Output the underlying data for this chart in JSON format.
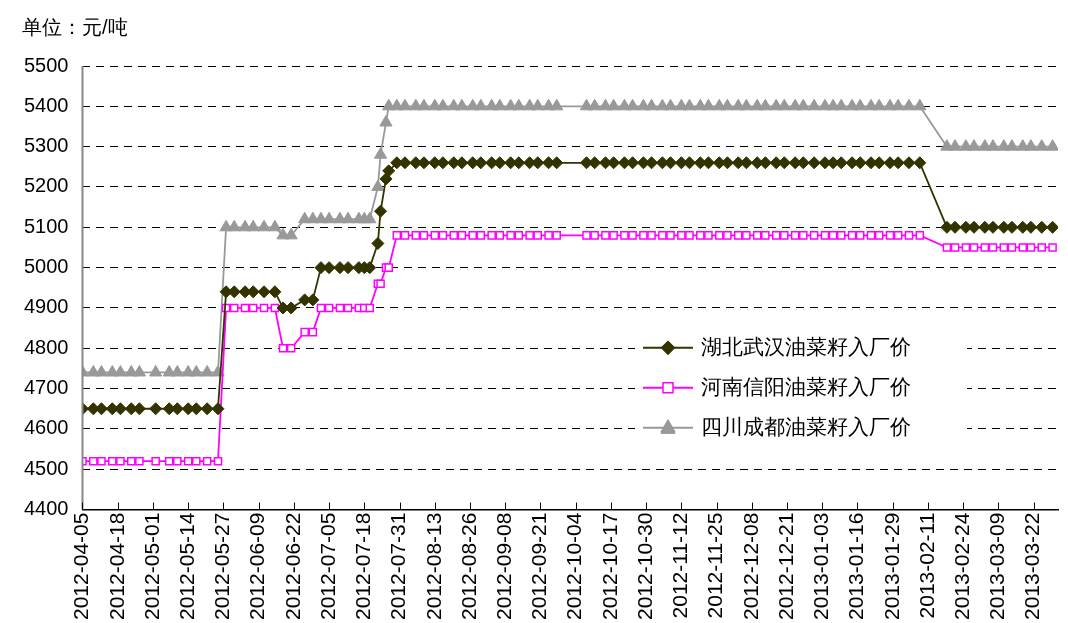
{
  "chart_data": {
    "type": "line",
    "ylabel": "单位：元/吨",
    "x": [
      "2012-04-05",
      "2012-04-09",
      "2012-04-12",
      "2012-04-16",
      "2012-04-19",
      "2012-04-23",
      "2012-04-26",
      "2012-05-02",
      "2012-05-07",
      "2012-05-10",
      "2012-05-14",
      "2012-05-17",
      "2012-05-21",
      "2012-05-25",
      "2012-05-28",
      "2012-05-31",
      "2012-06-04",
      "2012-06-07",
      "2012-06-11",
      "2012-06-15",
      "2012-06-18",
      "2012-06-21",
      "2012-06-26",
      "2012-06-29",
      "2012-07-02",
      "2012-07-05",
      "2012-07-09",
      "2012-07-12",
      "2012-07-16",
      "2012-07-18",
      "2012-07-20",
      "2012-07-23",
      "2012-07-24",
      "2012-07-26",
      "2012-07-27",
      "2012-07-30",
      "2012-08-02",
      "2012-08-06",
      "2012-08-09",
      "2012-08-13",
      "2012-08-16",
      "2012-08-20",
      "2012-08-23",
      "2012-08-27",
      "2012-08-30",
      "2012-09-03",
      "2012-09-06",
      "2012-09-10",
      "2012-09-13",
      "2012-09-17",
      "2012-09-20",
      "2012-09-24",
      "2012-09-27",
      "2012-10-08",
      "2012-10-11",
      "2012-10-15",
      "2012-10-18",
      "2012-10-22",
      "2012-10-25",
      "2012-10-29",
      "2012-11-01",
      "2012-11-05",
      "2012-11-08",
      "2012-11-12",
      "2012-11-15",
      "2012-11-19",
      "2012-11-22",
      "2012-11-26",
      "2012-11-29",
      "2012-12-03",
      "2012-12-06",
      "2012-12-10",
      "2012-12-13",
      "2012-12-17",
      "2012-12-20",
      "2012-12-24",
      "2012-12-27",
      "2012-12-31",
      "2013-01-04",
      "2013-01-07",
      "2013-01-10",
      "2013-01-14",
      "2013-01-17",
      "2013-01-21",
      "2013-01-24",
      "2013-01-28",
      "2013-01-31",
      "2013-02-04",
      "2013-02-08",
      "2013-02-18",
      "2013-02-21",
      "2013-02-25",
      "2013-02-28",
      "2013-03-04",
      "2013-03-07",
      "2013-03-11",
      "2013-03-14",
      "2013-03-18",
      "2013-03-21",
      "2013-03-25",
      "2013-03-29"
    ],
    "series": [
      {
        "name": "湖北武汉油菜籽入厂价",
        "color": "#333300",
        "marker": "diamond",
        "values": [
          4650,
          4650,
          4650,
          4650,
          4650,
          4650,
          4650,
          4650,
          4650,
          4650,
          4650,
          4650,
          4650,
          4650,
          4940,
          4940,
          4940,
          4940,
          4940,
          4940,
          4900,
          4900,
          4920,
          4920,
          5000,
          5000,
          5000,
          5000,
          5000,
          5000,
          5000,
          5060,
          5140,
          5220,
          5240,
          5260,
          5260,
          5260,
          5260,
          5260,
          5260,
          5260,
          5260,
          5260,
          5260,
          5260,
          5260,
          5260,
          5260,
          5260,
          5260,
          5260,
          5260,
          5260,
          5260,
          5260,
          5260,
          5260,
          5260,
          5260,
          5260,
          5260,
          5260,
          5260,
          5260,
          5260,
          5260,
          5260,
          5260,
          5260,
          5260,
          5260,
          5260,
          5260,
          5260,
          5260,
          5260,
          5260,
          5260,
          5260,
          5260,
          5260,
          5260,
          5260,
          5260,
          5260,
          5260,
          5260,
          5260,
          5100,
          5100,
          5100,
          5100,
          5100,
          5100,
          5100,
          5100,
          5100,
          5100,
          5100,
          5100
        ]
      },
      {
        "name": "河南信阳油菜籽入厂价",
        "color": "#ff00ff",
        "marker": "square",
        "values": [
          4520,
          4520,
          4520,
          4520,
          4520,
          4520,
          4520,
          4520,
          4520,
          4520,
          4520,
          4520,
          4520,
          4520,
          4900,
          4900,
          4900,
          4900,
          4900,
          4900,
          4800,
          4800,
          4840,
          4840,
          4900,
          4900,
          4900,
          4900,
          4900,
          4900,
          4900,
          4960,
          4960,
          5000,
          5000,
          5080,
          5080,
          5080,
          5080,
          5080,
          5080,
          5080,
          5080,
          5080,
          5080,
          5080,
          5080,
          5080,
          5080,
          5080,
          5080,
          5080,
          5080,
          5080,
          5080,
          5080,
          5080,
          5080,
          5080,
          5080,
          5080,
          5080,
          5080,
          5080,
          5080,
          5080,
          5080,
          5080,
          5080,
          5080,
          5080,
          5080,
          5080,
          5080,
          5080,
          5080,
          5080,
          5080,
          5080,
          5080,
          5080,
          5080,
          5080,
          5080,
          5080,
          5080,
          5080,
          5080,
          5080,
          5050,
          5050,
          5050,
          5050,
          5050,
          5050,
          5050,
          5050,
          5050,
          5050,
          5050,
          5050
        ]
      },
      {
        "name": "四川成都油菜籽入厂价",
        "color": "#999999",
        "marker": "triangle",
        "values": [
          4740,
          4740,
          4740,
          4740,
          4740,
          4740,
          4740,
          4740,
          4740,
          4740,
          4740,
          4740,
          4740,
          4740,
          5100,
          5100,
          5100,
          5100,
          5100,
          5100,
          5080,
          5080,
          5120,
          5120,
          5120,
          5120,
          5120,
          5120,
          5120,
          5120,
          5120,
          5200,
          5280,
          5360,
          5400,
          5400,
          5400,
          5400,
          5400,
          5400,
          5400,
          5400,
          5400,
          5400,
          5400,
          5400,
          5400,
          5400,
          5400,
          5400,
          5400,
          5400,
          5400,
          5400,
          5400,
          5400,
          5400,
          5400,
          5400,
          5400,
          5400,
          5400,
          5400,
          5400,
          5400,
          5400,
          5400,
          5400,
          5400,
          5400,
          5400,
          5400,
          5400,
          5400,
          5400,
          5400,
          5400,
          5400,
          5400,
          5400,
          5400,
          5400,
          5400,
          5400,
          5400,
          5400,
          5400,
          5400,
          5400,
          5300,
          5300,
          5300,
          5300,
          5300,
          5300,
          5300,
          5300,
          5300,
          5300,
          5300,
          5300
        ]
      }
    ],
    "xlim": [
      "2012-04-05",
      "2013-03-31"
    ],
    "xticks": [
      "2012-04-05",
      "2012-04-18",
      "2012-05-01",
      "2012-05-14",
      "2012-05-27",
      "2012-06-09",
      "2012-06-22",
      "2012-07-05",
      "2012-07-18",
      "2012-07-31",
      "2012-08-13",
      "2012-08-26",
      "2012-09-08",
      "2012-09-21",
      "2012-10-04",
      "2012-10-17",
      "2012-10-30",
      "2012-11-12",
      "2012-11-25",
      "2012-12-08",
      "2012-12-21",
      "2013-01-03",
      "2013-01-16",
      "2013-01-29",
      "2013-02-11",
      "2013-02-24",
      "2013-03-09",
      "2013-03-22"
    ],
    "ylim": [
      4400,
      5500
    ],
    "yticks": [
      4400,
      4500,
      4600,
      4700,
      4800,
      4900,
      5000,
      5100,
      5200,
      5300,
      5400,
      5500
    ],
    "grid": "y",
    "legend": "center right",
    "line_style": "solid"
  }
}
